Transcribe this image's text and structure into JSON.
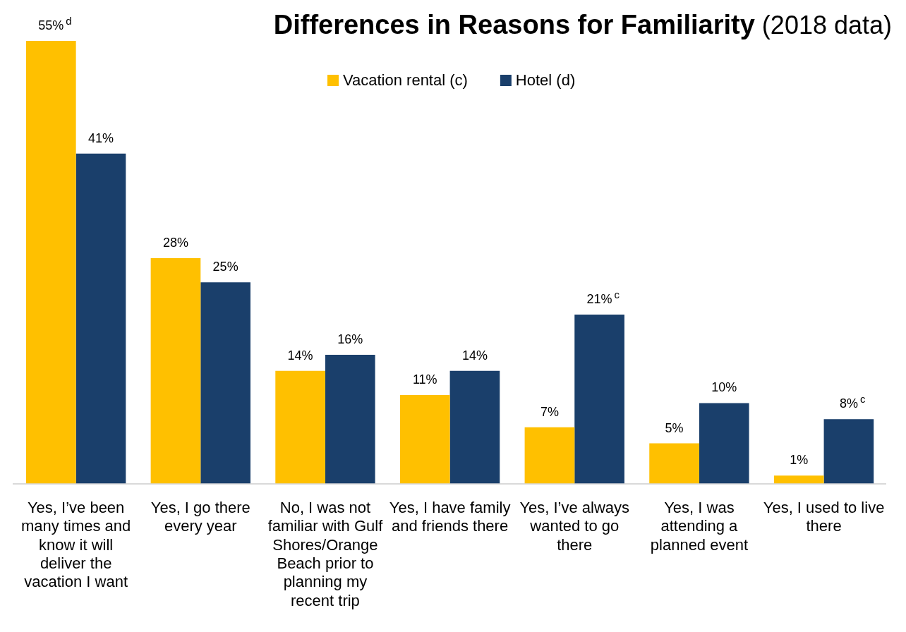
{
  "chart_data": {
    "type": "bar",
    "title": "Differences in Reasons for Familiarity",
    "subtitle": "(2018 data)",
    "categories": [
      "Yes, I’ve been many times and know it will deliver the vacation I want",
      "Yes, I go there every year",
      "No, I was not familiar with Gulf Shores/Orange Beach prior to planning my recent trip",
      "Yes, I have family and friends there",
      "Yes, I’ve always wanted to go there",
      "Yes, I was attending a planned event",
      "Yes, I used to live there"
    ],
    "series": [
      {
        "name": "Vacation rental (c)",
        "color": "#ffc000",
        "values": [
          55,
          28,
          14,
          11,
          7,
          5,
          1
        ],
        "value_labels": [
          "55%$^{d}$",
          "28%",
          "14%",
          "11%",
          "7%",
          "5%",
          "1%"
        ]
      },
      {
        "name": "Hotel (d)",
        "color": "#1a3f6b",
        "values": [
          41,
          25,
          16,
          14,
          21,
          10,
          8
        ],
        "value_labels": [
          "41%",
          "25%",
          "16%",
          "14%",
          "21%$^{c}$",
          "10%",
          "8%$^{c}$"
        ]
      }
    ],
    "legend": "top",
    "grid": false
  }
}
